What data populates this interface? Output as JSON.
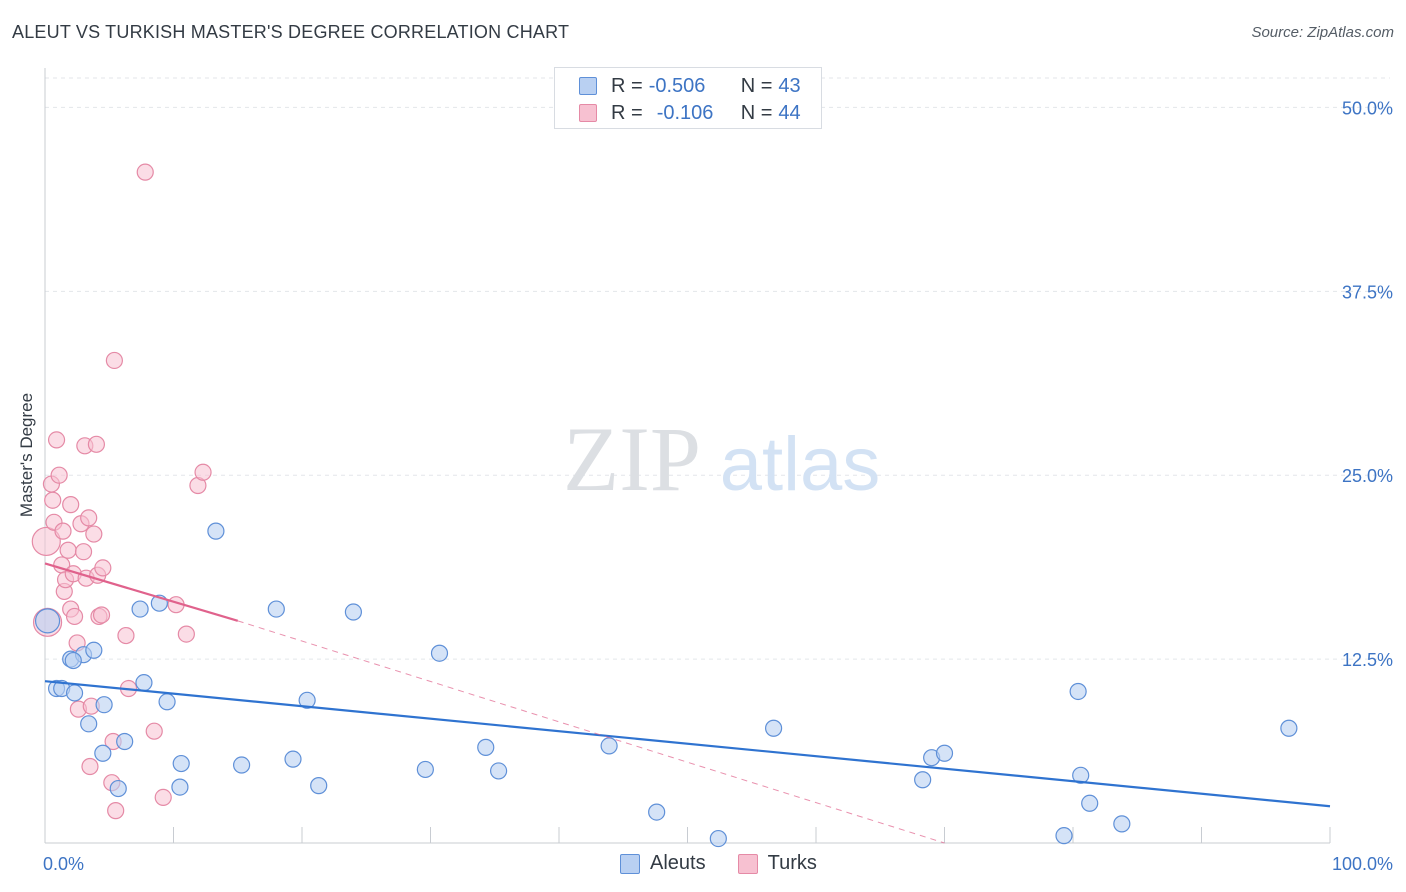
{
  "title": "ALEUT VS TURKISH MASTER'S DEGREE CORRELATION CHART",
  "source": "Source: ZipAtlas.com",
  "watermark": {
    "zip": "ZIP",
    "atlas": "atlas"
  },
  "legend": {
    "r_label": "R = ",
    "n_label": "N = ",
    "aleuts": {
      "r": "-0.506",
      "n": "43"
    },
    "turks": {
      "r": "-0.106",
      "n": "44"
    }
  },
  "bottom_legend": {
    "aleuts": "Aleuts",
    "turks": "Turks"
  },
  "colors": {
    "aleut_fill": "#b9d0f2",
    "aleut_stroke": "#5f90d8",
    "aleut_line": "#2f73d0",
    "turk_fill": "#f7c1d1",
    "turk_stroke": "#e58aa6",
    "turk_line": "#e0628c",
    "axis_text": "#3d74c4",
    "grid": "#e3e6ea"
  },
  "chart_data": {
    "type": "scatter",
    "title": "ALEUT VS TURKISH MASTER'S DEGREE CORRELATION CHART",
    "xlabel": "",
    "ylabel": "Master's Degree",
    "xlim": [
      0,
      100
    ],
    "ylim": [
      0,
      52
    ],
    "x_tick_labels": [
      {
        "value": 0,
        "label": "0.0%"
      },
      {
        "value": 100,
        "label": "100.0%"
      }
    ],
    "y_tick_labels": [
      {
        "value": 12.5,
        "label": "12.5%"
      },
      {
        "value": 25,
        "label": "25.0%"
      },
      {
        "value": 37.5,
        "label": "37.5%"
      },
      {
        "value": 50,
        "label": "50.0%"
      }
    ],
    "series": [
      {
        "name": "Aleuts",
        "r": -0.506,
        "n": 43,
        "trend": {
          "x": [
            0,
            100
          ],
          "y": [
            11.0,
            2.5
          ]
        },
        "points": [
          [
            0.2,
            15.1
          ],
          [
            0.9,
            10.5
          ],
          [
            1.3,
            10.5
          ],
          [
            2.0,
            12.5
          ],
          [
            2.3,
            10.2
          ],
          [
            3.0,
            12.8
          ],
          [
            3.4,
            8.1
          ],
          [
            3.8,
            13.1
          ],
          [
            4.6,
            9.4
          ],
          [
            4.5,
            6.1
          ],
          [
            5.7,
            3.7
          ],
          [
            6.2,
            6.9
          ],
          [
            7.4,
            15.9
          ],
          [
            7.7,
            10.9
          ],
          [
            8.9,
            16.3
          ],
          [
            9.5,
            9.6
          ],
          [
            10.5,
            3.8
          ],
          [
            10.6,
            5.4
          ],
          [
            13.3,
            21.2
          ],
          [
            15.3,
            5.3
          ],
          [
            18.0,
            15.9
          ],
          [
            19.3,
            5.7
          ],
          [
            20.4,
            9.7
          ],
          [
            21.3,
            3.9
          ],
          [
            24.0,
            15.7
          ],
          [
            29.6,
            5.0
          ],
          [
            30.7,
            12.9
          ],
          [
            34.3,
            6.5
          ],
          [
            35.3,
            4.9
          ],
          [
            43.9,
            6.6
          ],
          [
            47.6,
            2.1
          ],
          [
            52.4,
            0.3
          ],
          [
            56.7,
            7.8
          ],
          [
            68.3,
            4.3
          ],
          [
            69.0,
            5.8
          ],
          [
            70.0,
            6.1
          ],
          [
            79.3,
            0.5
          ],
          [
            80.4,
            10.3
          ],
          [
            80.6,
            4.6
          ],
          [
            81.3,
            2.7
          ],
          [
            83.8,
            1.3
          ],
          [
            96.8,
            7.8
          ],
          [
            2.2,
            12.4
          ]
        ]
      },
      {
        "name": "Turks",
        "r": -0.106,
        "n": 44,
        "trend": {
          "x": [
            0,
            15
          ],
          "y": [
            19.0,
            15.1
          ]
        },
        "trend_extension": {
          "x": [
            15,
            70
          ],
          "y": [
            15.1,
            0
          ]
        },
        "points": [
          [
            0.1,
            20.5
          ],
          [
            0.2,
            15.0
          ],
          [
            0.5,
            24.4
          ],
          [
            0.6,
            23.3
          ],
          [
            0.7,
            21.8
          ],
          [
            0.9,
            27.4
          ],
          [
            1.1,
            25.0
          ],
          [
            1.3,
            18.9
          ],
          [
            1.4,
            21.2
          ],
          [
            1.5,
            17.1
          ],
          [
            1.6,
            17.9
          ],
          [
            1.8,
            19.9
          ],
          [
            2.0,
            15.9
          ],
          [
            2.0,
            23.0
          ],
          [
            2.2,
            18.3
          ],
          [
            2.3,
            15.4
          ],
          [
            2.5,
            13.6
          ],
          [
            2.6,
            9.1
          ],
          [
            2.8,
            21.7
          ],
          [
            3.0,
            19.8
          ],
          [
            3.1,
            27.0
          ],
          [
            3.2,
            18.0
          ],
          [
            3.4,
            22.1
          ],
          [
            3.5,
            5.2
          ],
          [
            3.6,
            9.3
          ],
          [
            3.8,
            21.0
          ],
          [
            4.0,
            27.1
          ],
          [
            4.1,
            18.2
          ],
          [
            4.2,
            15.4
          ],
          [
            4.4,
            15.5
          ],
          [
            4.5,
            18.7
          ],
          [
            5.2,
            4.1
          ],
          [
            5.3,
            6.9
          ],
          [
            5.5,
            2.2
          ],
          [
            5.4,
            32.8
          ],
          [
            6.3,
            14.1
          ],
          [
            6.5,
            10.5
          ],
          [
            7.8,
            45.6
          ],
          [
            8.5,
            7.6
          ],
          [
            9.2,
            3.1
          ],
          [
            10.2,
            16.2
          ],
          [
            11.0,
            14.2
          ],
          [
            11.9,
            24.3
          ],
          [
            12.3,
            25.2
          ]
        ]
      }
    ]
  }
}
